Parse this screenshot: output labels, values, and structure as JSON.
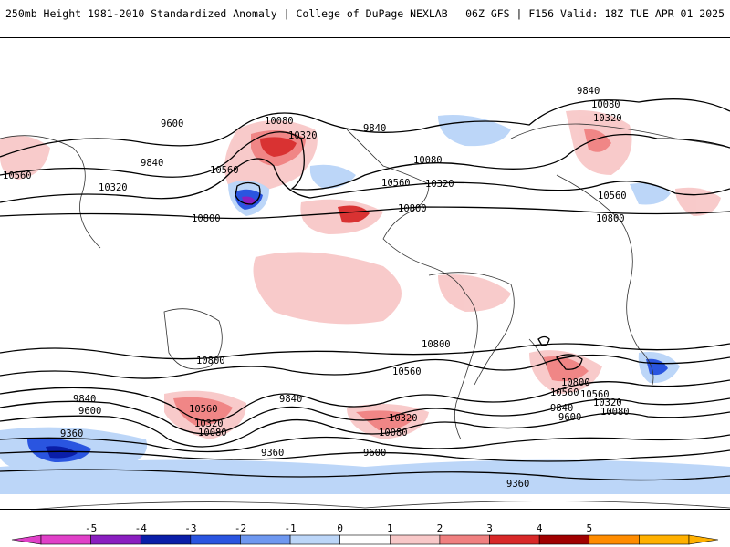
{
  "header": {
    "title": "250mb Height 1981-2010 Standardized Anomaly | College of DuPage NEXLAB",
    "run_info": "06Z GFS | F156 Valid: 18Z TUE APR 01 2025"
  },
  "contour_labels": [
    "9840",
    "10080",
    "10320",
    "10560",
    "10320",
    "9600",
    "10800",
    "9840",
    "10080",
    "10560",
    "10320",
    "10560",
    "10800",
    "9840",
    "10080",
    "10320",
    "10560",
    "10800",
    "10560",
    "10800",
    "10800",
    "10560",
    "9840",
    "9600",
    "9360",
    "10560",
    "10320",
    "10080",
    "9840",
    "10320",
    "10080",
    "9600",
    "9360",
    "10800",
    "10560",
    "9840",
    "10320",
    "10080",
    "9600",
    "9360"
  ],
  "colorbar": {
    "ticks": [
      "-5",
      "-4",
      "-3",
      "-2",
      "-1",
      "0",
      "1",
      "2",
      "3",
      "4",
      "5"
    ],
    "colors": [
      "#e040c8",
      "#8a1ec0",
      "#0a1ea8",
      "#2a55e0",
      "#6e98f0",
      "#bcd6f8",
      "#ffffff",
      "#f8c8c8",
      "#f08080",
      "#d82828",
      "#a00000",
      "#ff8c00",
      "#ffb000"
    ]
  }
}
